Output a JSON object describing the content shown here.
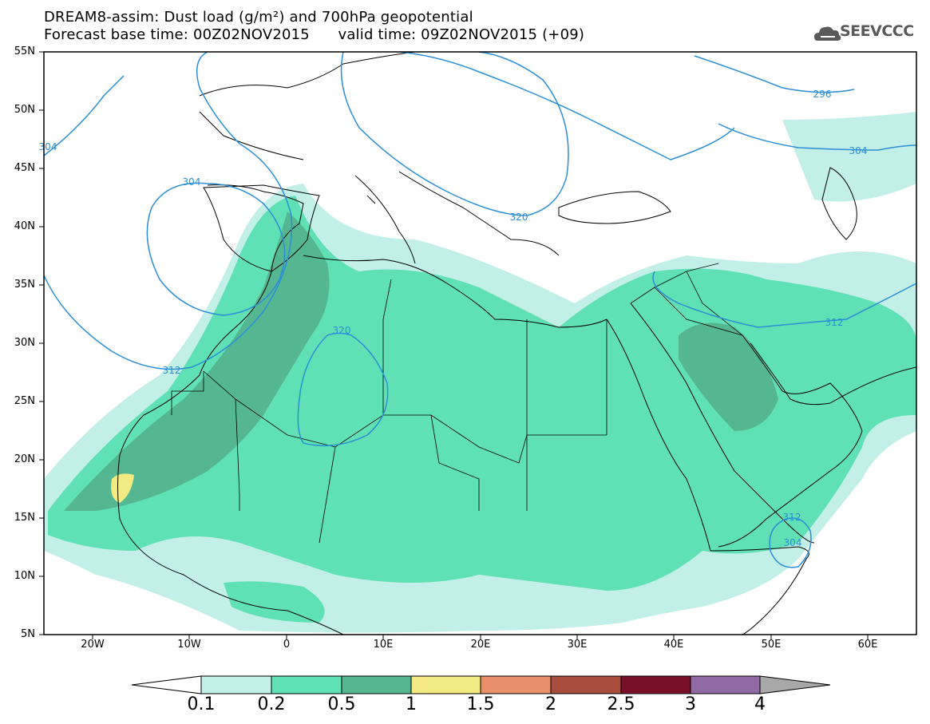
{
  "title": {
    "line1": "DREAM8-assim: Dust load (g/m²) and 700hPa geopotential",
    "line2": "Forecast base time: 00Z02NOV2015      valid time: 09Z02NOV2015 (+09)"
  },
  "logo": {
    "text": "SEEVCCC",
    "icon": "cloud-icon"
  },
  "map": {
    "lon_range": [
      -25,
      65
    ],
    "lat_range": [
      5,
      55
    ],
    "lat_labels": [
      "55N",
      "50N",
      "45N",
      "40N",
      "35N",
      "30N",
      "25N",
      "20N",
      "15N",
      "10N",
      "5N"
    ],
    "lon_labels": [
      "20W",
      "10W",
      "0",
      "10E",
      "20E",
      "30E",
      "40E",
      "50E",
      "60E"
    ],
    "contour_labels": [
      "304",
      "304",
      "296",
      "304",
      "320",
      "320",
      "312",
      "312",
      "312",
      "304"
    ]
  },
  "colorbar": {
    "labels": [
      "0.1",
      "0.2",
      "0.5",
      "1",
      "1.5",
      "2",
      "2.5",
      "3",
      "4"
    ],
    "colors": [
      "#c2efe8",
      "#5fe0b5",
      "#55b791",
      "#f3ea84",
      "#e9906a",
      "#a84d3e",
      "#7a0f2a",
      "#8f6aa3",
      "#a8a8a8"
    ]
  },
  "colors": {
    "contour": "#2b8fd6",
    "coast": "#000000",
    "ocean": "#ffffff"
  }
}
